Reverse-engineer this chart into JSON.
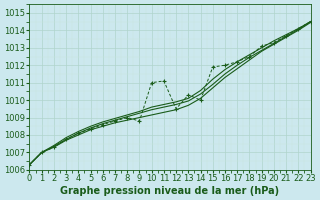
{
  "xlabel": "Graphe pression niveau de la mer (hPa)",
  "ylim": [
    1006,
    1015.5
  ],
  "xlim": [
    0,
    23
  ],
  "yticks": [
    1006,
    1007,
    1008,
    1009,
    1010,
    1011,
    1012,
    1013,
    1014,
    1015
  ],
  "xticks": [
    0,
    1,
    2,
    3,
    4,
    5,
    6,
    7,
    8,
    9,
    10,
    11,
    12,
    13,
    14,
    15,
    16,
    17,
    18,
    19,
    20,
    21,
    22,
    23
  ],
  "bg_color": "#cce8ee",
  "grid_major_color": "#b0d4cc",
  "grid_minor_color": "#c8e4dc",
  "line_color": "#1a5c1a",
  "series_smooth1": [
    1006.3,
    1007.0,
    1007.3,
    1007.7,
    1008.0,
    1008.3,
    1008.5,
    1008.7,
    1008.85,
    1009.0,
    1009.15,
    1009.3,
    1009.45,
    1009.7,
    1010.1,
    1010.7,
    1011.3,
    1011.8,
    1012.3,
    1012.8,
    1013.2,
    1013.6,
    1014.0,
    1014.45
  ],
  "series_smooth2": [
    1006.3,
    1007.0,
    1007.35,
    1007.75,
    1008.1,
    1008.4,
    1008.65,
    1008.85,
    1009.05,
    1009.25,
    1009.45,
    1009.6,
    1009.75,
    1009.95,
    1010.35,
    1010.9,
    1011.5,
    1012.0,
    1012.45,
    1012.85,
    1013.25,
    1013.65,
    1014.05,
    1014.5
  ],
  "series_smooth3": [
    1006.3,
    1007.0,
    1007.4,
    1007.85,
    1008.2,
    1008.5,
    1008.75,
    1008.95,
    1009.15,
    1009.35,
    1009.6,
    1009.75,
    1009.9,
    1010.1,
    1010.55,
    1011.2,
    1011.75,
    1012.2,
    1012.6,
    1013.0,
    1013.4,
    1013.75,
    1014.1,
    1014.5
  ],
  "series_marker": [
    1006.3,
    1007.0,
    1007.3,
    1007.75,
    1008.1,
    1008.35,
    1008.6,
    1008.8,
    1009.0,
    1008.8,
    1011.0,
    1011.1,
    1009.5,
    1010.3,
    1010.0,
    1011.9,
    1012.0,
    1012.2,
    1012.5,
    1013.1,
    1013.3,
    1013.7,
    1014.1,
    1014.5
  ],
  "font_color": "#1a5c1a",
  "title_font_size": 7,
  "tick_font_size": 6
}
